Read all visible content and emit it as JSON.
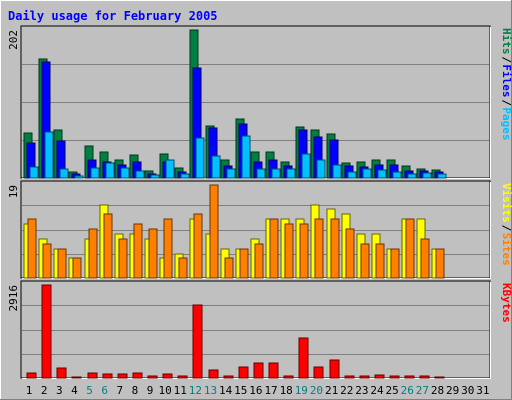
{
  "title": "Daily usage for February 2005",
  "colors": {
    "background": "#c0c0c0",
    "plot_bg": "#c0c0c0",
    "title": "#0000ff",
    "hits": "#008040",
    "files": "#0000ff",
    "pages": "#00c0ff",
    "visits": "#ffff00",
    "sites": "#ff8000",
    "kbytes": "#ff0000",
    "weekend_label": "#008080"
  },
  "chart_data": [
    {
      "type": "bar",
      "name": "hits-files-pages",
      "ymax_label": "202",
      "ylim": [
        0,
        202
      ],
      "categories": [
        "1",
        "2",
        "3",
        "4",
        "5",
        "6",
        "7",
        "8",
        "9",
        "10",
        "11",
        "12",
        "13",
        "14",
        "15",
        "16",
        "17",
        "18",
        "19",
        "20",
        "21",
        "22",
        "23",
        "24",
        "25",
        "26",
        "27",
        "28",
        "29",
        "30",
        "31"
      ],
      "legend": [
        "Pages",
        "Files",
        "Hits"
      ],
      "series": [
        {
          "name": "Hits",
          "values": [
            62,
            163,
            66,
            8,
            44,
            35,
            25,
            32,
            10,
            33,
            13,
            202,
            71,
            24,
            81,
            36,
            35,
            22,
            70,
            65,
            60,
            20,
            22,
            25,
            24,
            16,
            12,
            11,
            0,
            0,
            0
          ]
        },
        {
          "name": "Files",
          "values": [
            48,
            158,
            50,
            5,
            25,
            22,
            18,
            22,
            6,
            22,
            8,
            150,
            68,
            17,
            74,
            22,
            24,
            16,
            66,
            56,
            52,
            16,
            15,
            18,
            18,
            10,
            9,
            8,
            0,
            0,
            0
          ]
        },
        {
          "name": "Pages",
          "values": [
            15,
            63,
            12,
            3,
            14,
            20,
            14,
            10,
            4,
            25,
            5,
            55,
            30,
            12,
            58,
            12,
            12,
            12,
            33,
            24,
            18,
            8,
            12,
            11,
            8,
            6,
            7,
            6,
            0,
            0,
            0
          ]
        }
      ]
    },
    {
      "type": "bar",
      "name": "visits-sites",
      "ymax_label": "19",
      "ylim": [
        0,
        19
      ],
      "categories": [
        "1",
        "2",
        "3",
        "4",
        "5",
        "6",
        "7",
        "8",
        "9",
        "10",
        "11",
        "12",
        "13",
        "14",
        "15",
        "16",
        "17",
        "18",
        "19",
        "20",
        "21",
        "22",
        "23",
        "24",
        "25",
        "26",
        "27",
        "28",
        "29",
        "30",
        "31"
      ],
      "legend": [
        "Sites",
        "Visits"
      ],
      "series": [
        {
          "name": "Visits",
          "values": [
            11,
            8,
            6,
            4,
            8,
            15,
            9,
            9,
            8,
            4,
            5,
            12,
            9,
            6,
            6,
            8,
            12,
            12,
            12,
            15,
            14,
            13,
            9,
            9,
            6,
            12,
            12,
            6,
            0,
            0,
            0
          ]
        },
        {
          "name": "Sites",
          "values": [
            12,
            7,
            6,
            4,
            10,
            13,
            8,
            11,
            10,
            12,
            4,
            13,
            19,
            4,
            6,
            7,
            12,
            11,
            11,
            12,
            12,
            10,
            7,
            7,
            6,
            12,
            8,
            6,
            0,
            0,
            0
          ]
        }
      ]
    },
    {
      "type": "bar",
      "name": "kbytes",
      "ymax_label": "2916",
      "ylim": [
        0,
        2916
      ],
      "categories": [
        "1",
        "2",
        "3",
        "4",
        "5",
        "6",
        "7",
        "8",
        "9",
        "10",
        "11",
        "12",
        "13",
        "14",
        "15",
        "16",
        "17",
        "18",
        "19",
        "20",
        "21",
        "22",
        "23",
        "24",
        "25",
        "26",
        "27",
        "28",
        "29",
        "30",
        "31"
      ],
      "legend": [
        "KBytes"
      ],
      "series": [
        {
          "name": "KBytes",
          "values": [
            160,
            2916,
            320,
            30,
            170,
            120,
            140,
            150,
            50,
            120,
            50,
            2300,
            260,
            60,
            330,
            480,
            480,
            60,
            1260,
            330,
            560,
            60,
            50,
            90,
            60,
            60,
            60,
            40,
            0,
            0,
            0
          ]
        }
      ]
    }
  ],
  "x_labels": [
    "1",
    "2",
    "3",
    "4",
    "5",
    "6",
    "7",
    "8",
    "9",
    "10",
    "11",
    "12",
    "13",
    "14",
    "15",
    "16",
    "17",
    "18",
    "19",
    "20",
    "21",
    "22",
    "23",
    "24",
    "25",
    "26",
    "27",
    "28",
    "29",
    "30",
    "31"
  ],
  "weekend_days": [
    "5",
    "6",
    "12",
    "13",
    "19",
    "20",
    "26",
    "27"
  ]
}
